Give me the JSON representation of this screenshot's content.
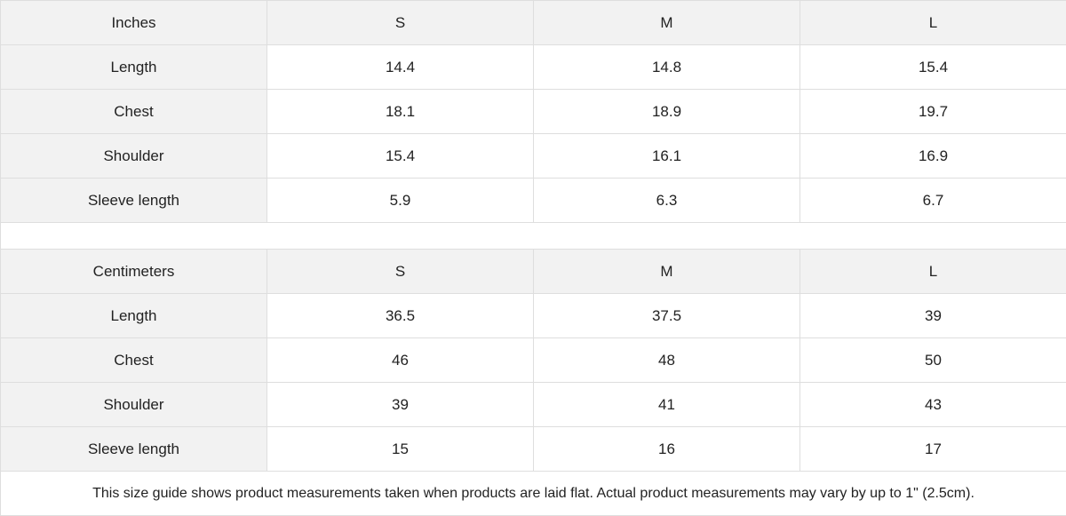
{
  "tables": [
    {
      "unit": "Inches",
      "sizes": [
        "S",
        "M",
        "L"
      ],
      "rows": [
        {
          "label": "Length",
          "values": [
            "14.4",
            "14.8",
            "15.4"
          ]
        },
        {
          "label": "Chest",
          "values": [
            "18.1",
            "18.9",
            "19.7"
          ]
        },
        {
          "label": "Shoulder",
          "values": [
            "15.4",
            "16.1",
            "16.9"
          ]
        },
        {
          "label": "Sleeve length",
          "values": [
            "5.9",
            "6.3",
            "6.7"
          ]
        }
      ]
    },
    {
      "unit": "Centimeters",
      "sizes": [
        "S",
        "M",
        "L"
      ],
      "rows": [
        {
          "label": "Length",
          "values": [
            "36.5",
            "37.5",
            "39"
          ]
        },
        {
          "label": "Chest",
          "values": [
            "46",
            "48",
            "50"
          ]
        },
        {
          "label": "Shoulder",
          "values": [
            "39",
            "41",
            "43"
          ]
        },
        {
          "label": "Sleeve length",
          "values": [
            "15",
            "16",
            "17"
          ]
        }
      ]
    }
  ],
  "footnote": "This size guide shows product measurements taken when products are laid flat.  Actual product measurements may vary by up to 1\" (2.5cm)."
}
